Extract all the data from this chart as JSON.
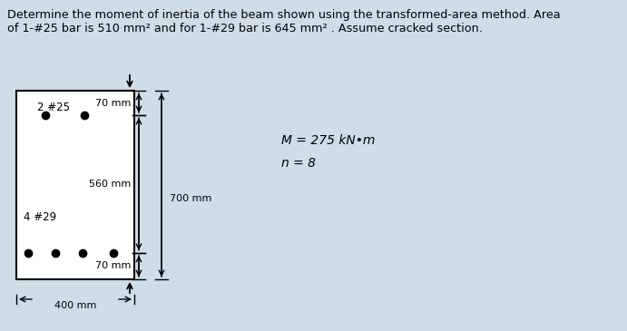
{
  "title_line1": "Determine the moment of inertia of the beam shown using the transformed-area method. Area",
  "title_line2": "of 1-#25 bar is 510 mm² and for 1-#29 bar is 645 mm² . Assume cracked section.",
  "background_color": "#cfdde8",
  "label_2_25": "2 #25",
  "label_4_29": "4 #29",
  "dim_70mm_top": "70 mm",
  "dim_560mm": "560 mm",
  "dim_700mm": "700 mm",
  "dim_70mm_bot": "70 mm",
  "dim_400mm": "400 mm",
  "label_M": "M = 275 kN•m",
  "label_n": "n = 8",
  "dot_size": 6,
  "text_color": "black",
  "font_size_title": 9.2,
  "font_size_label": 8.5,
  "font_size_dim": 8.0
}
